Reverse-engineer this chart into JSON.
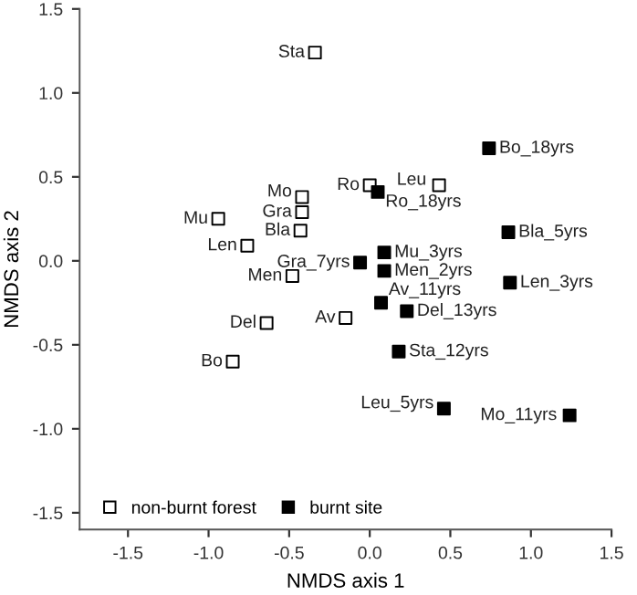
{
  "chart_data": {
    "type": "scatter",
    "xlabel": "NMDS axis 1",
    "ylabel": "NMDS axis 2",
    "xlim": [
      -1.8,
      1.5
    ],
    "ylim": [
      -1.6,
      1.5
    ],
    "xticks": [
      -1.5,
      {
        "value": -1,
        "label": "-1.0"
      },
      -0.5,
      {
        "value": 0,
        "label": "0.0"
      },
      0.5,
      {
        "value": 1,
        "label": "1.0"
      },
      1.5
    ],
    "yticks": [
      -1.5,
      {
        "value": -1,
        "label": "-1.0"
      },
      -0.5,
      {
        "value": 0,
        "label": "0.0"
      },
      0.5,
      {
        "value": 1,
        "label": "1.0"
      },
      1.5
    ],
    "grid": false,
    "legend": "bottom left",
    "marker": "square",
    "series": [
      {
        "name": "non-burnt forest",
        "color": "#ffffff",
        "x": [
          -0.34,
          -0.42,
          -0.42,
          -0.43,
          0.0,
          0.43,
          -0.94,
          -0.76,
          -0.48,
          -0.64,
          -0.15,
          -0.85
        ],
        "values": [
          1.24,
          0.38,
          0.29,
          0.18,
          0.45,
          0.45,
          0.25,
          0.09,
          -0.09,
          -0.37,
          -0.34,
          -0.6
        ]
      },
      {
        "name": "burnt site",
        "color": "#000000",
        "x": [
          0.74,
          0.05,
          0.86,
          0.09,
          -0.06,
          0.09,
          0.87,
          0.07,
          0.23,
          0.18,
          0.46,
          1.24
        ],
        "values": [
          0.67,
          0.41,
          0.17,
          0.05,
          -0.01,
          -0.06,
          -0.13,
          -0.25,
          -0.3,
          -0.54,
          -0.88,
          -0.92
        ]
      }
    ],
    "annotations": [
      {
        "text": "Sta",
        "x": -0.34,
        "y": 1.24
      },
      {
        "text": "Mo",
        "x": -0.42,
        "y": 0.38
      },
      {
        "text": "Gra",
        "x": -0.42,
        "y": 0.29
      },
      {
        "text": "Bla",
        "x": -0.43,
        "y": 0.18
      },
      {
        "text": "Ro",
        "x": 0.0,
        "y": 0.45
      },
      {
        "text": "Leu",
        "x": 0.43,
        "y": 0.45
      },
      {
        "text": "Mu",
        "x": -0.94,
        "y": 0.25
      },
      {
        "text": "Len",
        "x": -0.76,
        "y": 0.09
      },
      {
        "text": "Men",
        "x": -0.48,
        "y": -0.09
      },
      {
        "text": "Del",
        "x": -0.64,
        "y": -0.37
      },
      {
        "text": "Av",
        "x": -0.15,
        "y": -0.34
      },
      {
        "text": "Bo",
        "x": -0.85,
        "y": -0.6
      },
      {
        "text": "Bo_18yrs",
        "x": 0.74,
        "y": 0.67
      },
      {
        "text": "Ro_18yrs",
        "x": 0.05,
        "y": 0.41
      },
      {
        "text": "Bla_5yrs",
        "x": 0.86,
        "y": 0.17
      },
      {
        "text": "Mu_3yrs",
        "x": 0.09,
        "y": 0.05
      },
      {
        "text": "Gra_7yrs",
        "x": -0.06,
        "y": -0.01
      },
      {
        "text": "Men_2yrs",
        "x": 0.09,
        "y": -0.06
      },
      {
        "text": "Len_3yrs",
        "x": 0.87,
        "y": -0.13
      },
      {
        "text": "Av_11yrs",
        "x": 0.07,
        "y": -0.25
      },
      {
        "text": "Del_13yrs",
        "x": 0.23,
        "y": -0.3
      },
      {
        "text": "Sta_12yrs",
        "x": 0.18,
        "y": -0.54
      },
      {
        "text": "Leu_5yrs",
        "x": 0.46,
        "y": -0.88
      },
      {
        "text": "Mo_11yrs",
        "x": 1.24,
        "y": -0.92
      }
    ]
  }
}
